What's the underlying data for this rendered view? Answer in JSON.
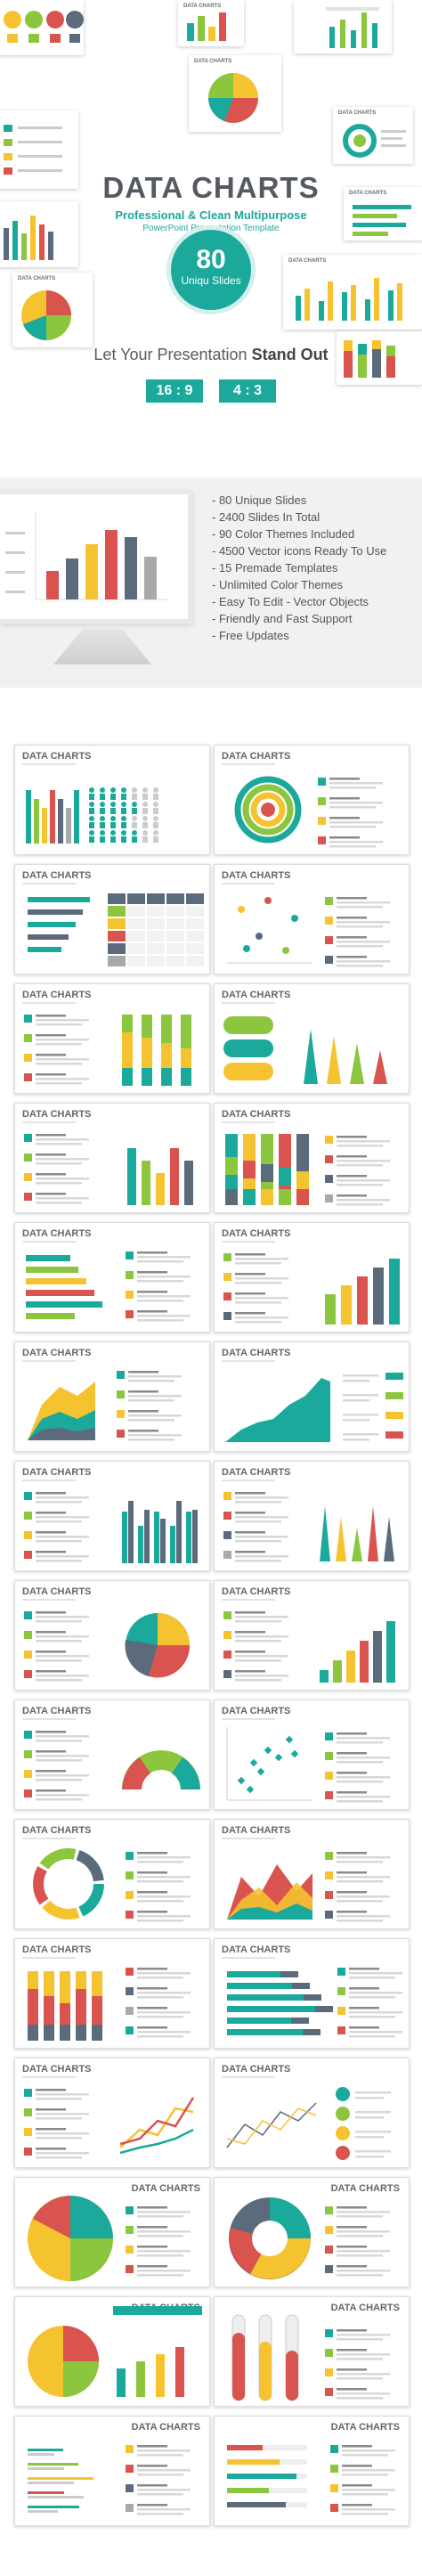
{
  "hero": {
    "title": "DATA CHARTS",
    "subtitle": "Professional & Clean Multipurpose",
    "template_line": "PowerPoint Presentation Template",
    "badge_number": "80",
    "badge_label": "Uniqu Slides",
    "tagline_prefix": "Let Your Presentation ",
    "tagline_bold": "Stand Out",
    "ratios": [
      "16 : 9",
      "4 : 3"
    ],
    "mini_slide_title": "DATA CHARTS"
  },
  "features": {
    "items": [
      "- 80 Unique Slides",
      "- 2400 Slides In Total",
      "- 90 Color Themes Included",
      "- 4500 Vector icons Ready To Use",
      "- 15 Premade Templates",
      "- Unlimited Color Themes",
      "- Easy To Edit - Vector Objects",
      "- Friendly and Fast Support",
      "- Free Updates"
    ]
  },
  "slides": {
    "title": "DATA CHARTS",
    "count": 30
  },
  "colors": {
    "teal": "#1ba99b",
    "green": "#8cc63f",
    "yellow": "#f5c330",
    "red": "#d9534f",
    "slate": "#5b6b7c",
    "gray": "#a9a9a9"
  }
}
